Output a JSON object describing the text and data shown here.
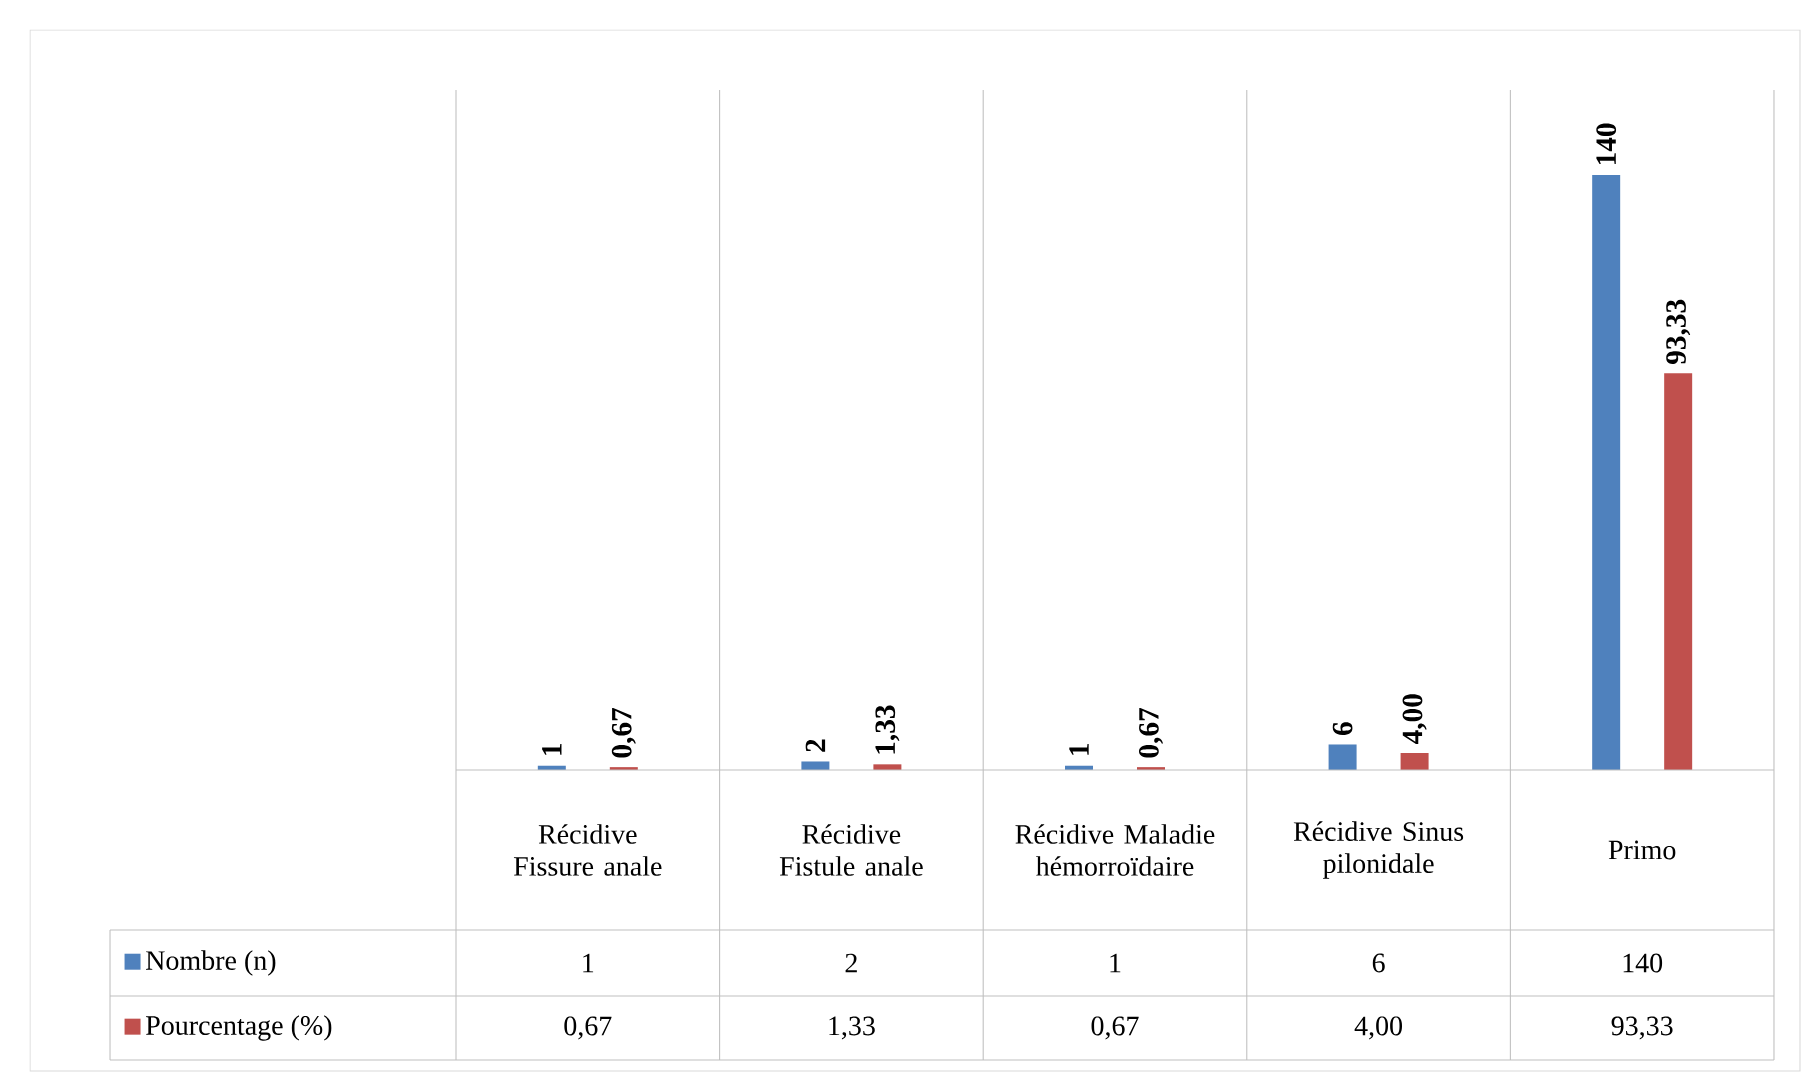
{
  "chart_data": {
    "type": "bar",
    "categories": [
      "Récidive Fissure anale",
      "Récidive Fistule anale",
      "Récidive Maladie hémorroïdaire",
      "Récidive Sinus pilonidale",
      "Primo"
    ],
    "series": [
      {
        "name": "Nombre (n)",
        "color": "#4f81bd",
        "values": [
          1,
          2,
          1,
          6,
          140
        ],
        "value_labels": [
          "1",
          "2",
          "1",
          "6",
          "140"
        ]
      },
      {
        "name": "Pourcentage (%)",
        "color": "#c0504d",
        "values": [
          0.67,
          1.33,
          0.67,
          4.0,
          93.33
        ],
        "value_labels": [
          "0,67",
          "1,33",
          "0,67",
          "4,00",
          "93,33"
        ]
      }
    ],
    "ylim": [
      0,
      160
    ],
    "legend": "bottom"
  }
}
